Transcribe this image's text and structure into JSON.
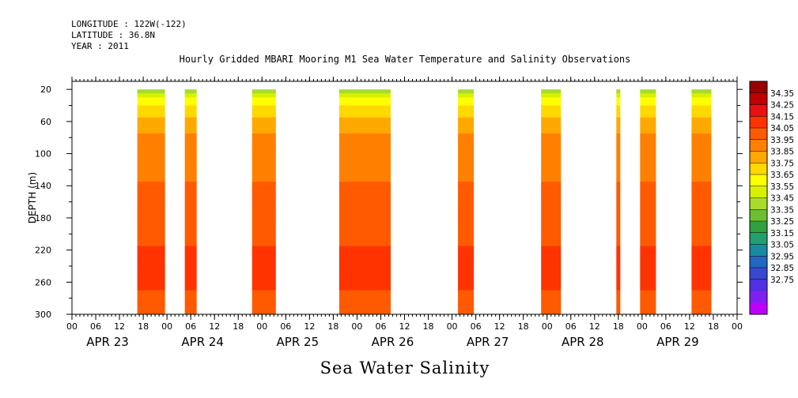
{
  "header": {
    "longitude": "LONGITUDE : 122W(-122)",
    "latitude": "LATITUDE : 36.8N",
    "year": "YEAR : 2011"
  },
  "chart_data": {
    "type": "heatmap",
    "title": "Hourly Gridded MBARI Mooring M1 Sea Water Temperature and Salinity Observations",
    "xlabel": "",
    "ylabel": "DEPTH (m)",
    "bottom_label": "Sea Water Salinity",
    "x_hour_ticks": [
      "00",
      "06",
      "12",
      "18",
      "00",
      "06",
      "12",
      "18",
      "00",
      "06",
      "12",
      "18",
      "00",
      "06",
      "12",
      "18",
      "00",
      "06",
      "12",
      "18",
      "00",
      "06",
      "12",
      "18",
      "00",
      "06",
      "12",
      "18",
      "00"
    ],
    "x_day_labels": [
      "APR 23",
      "APR 24",
      "APR 25",
      "APR 26",
      "APR 27",
      "APR 28",
      "APR 29"
    ],
    "x_range_hours": [
      0,
      168
    ],
    "ylim": [
      300,
      10
    ],
    "y_ticks": [
      20,
      60,
      100,
      140,
      180,
      220,
      260,
      300
    ],
    "colorbar": {
      "levels": [
        "34.35",
        "34.25",
        "34.15",
        "34.05",
        "33.95",
        "33.85",
        "33.75",
        "33.65",
        "33.55",
        "33.45",
        "33.35",
        "33.25",
        "33.15",
        "33.05",
        "32.95",
        "32.85",
        "32.75"
      ],
      "colors": [
        "#990000",
        "#c00000",
        "#e81010",
        "#ff3300",
        "#ff5a00",
        "#ff8000",
        "#ffa800",
        "#ffd800",
        "#ffff00",
        "#d8f000",
        "#a8dc2a",
        "#6cc030",
        "#30a040",
        "#20a070",
        "#1a8aa0",
        "#2068c0",
        "#3848d0",
        "#5030e0",
        "#8020f0",
        "#c000ff"
      ]
    },
    "segments": [
      {
        "start_hour": 16.5,
        "end_hour": 23.5
      },
      {
        "start_hour": 28.5,
        "end_hour": 31.5
      },
      {
        "start_hour": 45.5,
        "end_hour": 51.5
      },
      {
        "start_hour": 67.5,
        "end_hour": 80.5
      },
      {
        "start_hour": 97.5,
        "end_hour": 101.5
      },
      {
        "start_hour": 118.5,
        "end_hour": 123.5
      },
      {
        "start_hour": 137.5,
        "end_hour": 138.5
      },
      {
        "start_hour": 143.5,
        "end_hour": 147.5
      },
      {
        "start_hour": 156.5,
        "end_hour": 161.5
      }
    ],
    "profile": [
      {
        "depth": 20,
        "value": 33.55
      },
      {
        "depth": 30,
        "value": 33.75
      },
      {
        "depth": 40,
        "value": 33.85
      },
      {
        "depth": 55,
        "value": 33.95
      },
      {
        "depth": 75,
        "value": 34.05
      },
      {
        "depth": 135,
        "value": 34.15
      },
      {
        "depth": 215,
        "value": 34.25
      },
      {
        "depth": 235,
        "value": 34.3
      },
      {
        "depth": 270,
        "value": 34.25
      },
      {
        "depth": 300,
        "value": 34.2
      }
    ]
  }
}
